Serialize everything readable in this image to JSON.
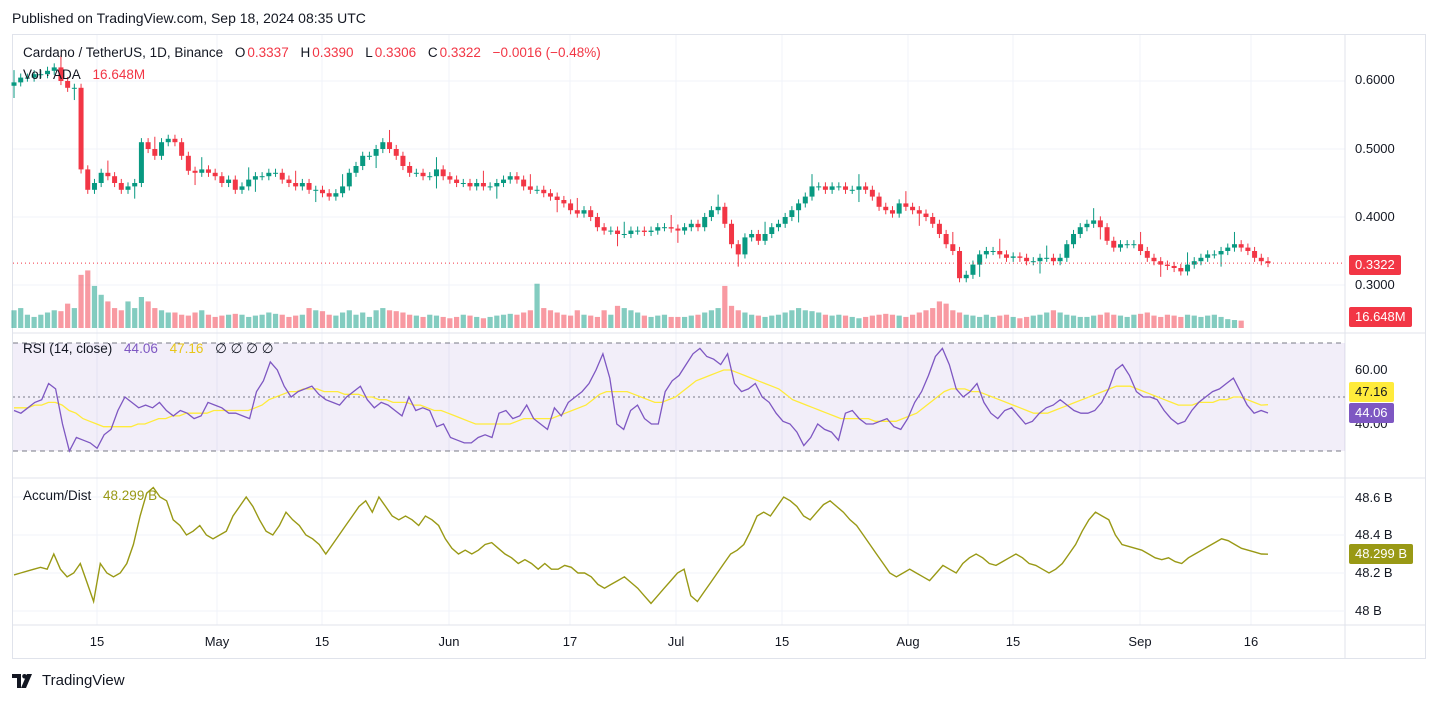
{
  "header": {
    "published": "Published on TradingView.com, Sep 18, 2024 08:35 UTC"
  },
  "footer": {
    "brand": "TradingView",
    "logo_icon": "tradingview-logo-icon"
  },
  "symbol": {
    "name": "Cardano / TetherUS, 1D, Binance",
    "o_label": "O",
    "o": "0.3337",
    "h_label": "H",
    "h": "0.3390",
    "l_label": "L",
    "l": "0.3306",
    "c_label": "C",
    "c": "0.3322",
    "change": "−0.0016 (−0.48%)"
  },
  "volume": {
    "label": "Vol · ADA",
    "value": "16.648M"
  },
  "rsi": {
    "label": "RSI (14, close)",
    "rsi_value": "44.06",
    "ma_value": "47.16",
    "extra": "∅ ∅ ∅ ∅"
  },
  "ad": {
    "label": "Accum/Dist",
    "value": "48.299 B"
  },
  "colors": {
    "up": "#089981",
    "down": "#f23645",
    "rsi_line": "#7e57c2",
    "rsi_ma": "#ffeb3b",
    "ad_line": "#999915"
  },
  "chart_data": [
    {
      "type": "candlestick",
      "pane": "price",
      "y_ticks": [
        "0.6000",
        "0.5000",
        "0.4000",
        "0.3000"
      ],
      "last_price": "0.3322",
      "x_ticks": [
        "15",
        "May",
        "15",
        "Jun",
        "17",
        "Jul",
        "15",
        "Aug",
        "15",
        "Sep",
        "16"
      ],
      "closes": [
        0.598,
        0.605,
        0.605,
        0.61,
        0.61,
        0.615,
        0.62,
        0.6,
        0.59,
        0.59,
        0.47,
        0.44,
        0.45,
        0.465,
        0.46,
        0.45,
        0.44,
        0.445,
        0.45,
        0.51,
        0.5,
        0.49,
        0.51,
        0.515,
        0.51,
        0.49,
        0.468,
        0.465,
        0.47,
        0.465,
        0.46,
        0.45,
        0.455,
        0.44,
        0.445,
        0.455,
        0.46,
        0.46,
        0.465,
        0.465,
        0.455,
        0.45,
        0.445,
        0.45,
        0.44,
        0.44,
        0.435,
        0.43,
        0.435,
        0.445,
        0.465,
        0.475,
        0.49,
        0.49,
        0.5,
        0.51,
        0.5,
        0.49,
        0.475,
        0.465,
        0.465,
        0.46,
        0.46,
        0.47,
        0.46,
        0.455,
        0.45,
        0.45,
        0.445,
        0.45,
        0.445,
        0.445,
        0.45,
        0.455,
        0.46,
        0.455,
        0.445,
        0.44,
        0.44,
        0.435,
        0.43,
        0.425,
        0.42,
        0.41,
        0.405,
        0.41,
        0.4,
        0.385,
        0.38,
        0.38,
        0.375,
        0.375,
        0.38,
        0.38,
        0.378,
        0.38,
        0.385,
        0.385,
        0.383,
        0.38,
        0.385,
        0.39,
        0.385,
        0.4,
        0.41,
        0.415,
        0.39,
        0.36,
        0.345,
        0.37,
        0.375,
        0.365,
        0.375,
        0.385,
        0.39,
        0.4,
        0.41,
        0.42,
        0.43,
        0.445,
        0.445,
        0.44,
        0.445,
        0.445,
        0.44,
        0.44,
        0.445,
        0.44,
        0.43,
        0.415,
        0.41,
        0.405,
        0.42,
        0.415,
        0.41,
        0.405,
        0.4,
        0.39,
        0.375,
        0.36,
        0.35,
        0.31,
        0.315,
        0.33,
        0.345,
        0.35,
        0.35,
        0.345,
        0.34,
        0.342,
        0.34,
        0.335,
        0.335,
        0.34,
        0.34,
        0.335,
        0.34,
        0.36,
        0.375,
        0.385,
        0.39,
        0.395,
        0.385,
        0.365,
        0.355,
        0.36,
        0.36,
        0.36,
        0.35,
        0.34,
        0.335,
        0.33,
        0.328,
        0.325,
        0.32,
        0.33,
        0.335,
        0.34,
        0.345,
        0.345,
        0.35,
        0.355,
        0.36,
        0.355,
        0.35,
        0.34,
        0.335,
        0.3322
      ]
    },
    {
      "type": "bar",
      "pane": "volume",
      "unit": "M ADA",
      "last_value": "16.648M",
      "values": [
        40,
        45,
        30,
        25,
        30,
        35,
        40,
        38,
        55,
        45,
        120,
        130,
        95,
        75,
        60,
        45,
        40,
        60,
        45,
        70,
        60,
        45,
        40,
        35,
        35,
        30,
        28,
        35,
        40,
        30,
        25,
        28,
        30,
        32,
        30,
        25,
        28,
        30,
        35,
        32,
        30,
        25,
        28,
        30,
        45,
        40,
        38,
        30,
        28,
        35,
        40,
        30,
        35,
        25,
        40,
        45,
        40,
        38,
        35,
        30,
        28,
        25,
        30,
        28,
        25,
        22,
        25,
        30,
        28,
        25,
        22,
        25,
        28,
        30,
        32,
        30,
        35,
        40,
        100,
        45,
        40,
        35,
        30,
        28,
        40,
        30,
        28,
        25,
        40,
        30,
        50,
        45,
        40,
        35,
        28,
        25,
        28,
        30,
        25,
        25,
        25,
        28,
        30,
        35,
        40,
        45,
        95,
        50,
        40,
        35,
        30,
        28,
        25,
        28,
        30,
        35,
        40,
        45,
        40,
        38,
        35,
        30,
        28,
        30,
        28,
        25,
        22,
        25,
        28,
        30,
        32,
        30,
        28,
        25,
        30,
        35,
        40,
        45,
        60,
        55,
        40,
        35,
        30,
        28,
        25,
        30,
        25,
        28,
        30,
        25,
        22,
        25,
        28,
        30,
        35,
        40,
        35,
        30,
        28,
        25,
        25,
        28,
        30,
        35,
        30,
        28,
        25,
        30,
        32,
        35,
        28,
        25,
        30,
        28,
        25,
        30,
        28,
        25,
        28,
        30,
        25,
        20,
        18,
        16.648
      ]
    },
    {
      "type": "line",
      "pane": "rsi",
      "y_ticks": [
        "60.00",
        "40.00"
      ],
      "bands": [
        70,
        50,
        30
      ],
      "series": [
        {
          "name": "RSI (14, close)",
          "last": "44.06",
          "values": [
            45,
            44,
            46,
            48,
            49,
            55,
            53,
            40,
            30,
            35,
            34,
            33,
            31,
            36,
            38,
            45,
            50,
            48,
            46,
            47,
            46,
            48,
            45,
            43,
            45,
            44,
            42,
            43,
            48,
            47,
            46,
            44,
            44,
            43,
            42,
            52,
            56,
            63,
            60,
            54,
            50,
            52,
            53,
            54,
            51,
            49,
            48,
            47,
            50,
            52,
            54,
            49,
            46,
            48,
            47,
            45,
            43,
            50,
            45,
            46,
            45,
            39,
            40,
            35,
            34,
            33,
            33,
            35,
            36,
            35,
            44,
            45,
            42,
            43,
            47,
            42,
            40,
            38,
            46,
            43,
            48,
            50,
            52,
            55,
            60,
            66,
            57,
            40,
            38,
            45,
            47,
            42,
            40,
            40,
            52,
            56,
            58,
            62,
            66,
            68,
            65,
            64,
            62,
            66,
            55,
            52,
            53,
            55,
            50,
            48,
            44,
            41,
            40,
            37,
            32,
            35,
            40,
            38,
            37,
            34,
            44,
            45,
            42,
            40,
            40,
            41,
            42,
            39,
            38,
            42,
            48,
            52,
            58,
            65,
            68,
            62,
            53,
            50,
            52,
            55,
            48,
            44,
            42,
            45,
            46,
            43,
            40,
            41,
            44,
            46,
            47,
            49,
            47,
            45,
            44,
            44,
            45,
            48,
            53,
            60,
            62,
            58,
            52,
            50,
            50,
            49,
            45,
            42,
            40,
            41,
            45,
            48,
            50,
            52,
            53,
            55,
            57,
            52,
            47,
            44,
            45,
            44.06
          ]
        },
        {
          "name": "RSI-based MA",
          "last": "47.16",
          "values": [
            46,
            46,
            46,
            47,
            47,
            48,
            48,
            47,
            45,
            44,
            42,
            41,
            40,
            39,
            39,
            39,
            39,
            39,
            40,
            40,
            41,
            42,
            42,
            43,
            43,
            44,
            44,
            44,
            44,
            45,
            45,
            45,
            45,
            45,
            45,
            46,
            47,
            49,
            50,
            51,
            52,
            52,
            53,
            53,
            53,
            52,
            52,
            52,
            51,
            51,
            51,
            50,
            50,
            49,
            49,
            48,
            48,
            48,
            47,
            47,
            46,
            45,
            45,
            44,
            43,
            42,
            41,
            40,
            40,
            40,
            40,
            40,
            40,
            41,
            42,
            42,
            42,
            42,
            42,
            43,
            44,
            45,
            46,
            47,
            49,
            51,
            52,
            52,
            52,
            52,
            51,
            50,
            49,
            48,
            48,
            49,
            50,
            52,
            54,
            56,
            57,
            58,
            59,
            60,
            60,
            59,
            58,
            57,
            56,
            55,
            54,
            53,
            51,
            49,
            48,
            47,
            46,
            45,
            44,
            43,
            42,
            42,
            42,
            42,
            42,
            41,
            41,
            41,
            41,
            42,
            43,
            44,
            46,
            48,
            50,
            52,
            53,
            53,
            53,
            52,
            52,
            51,
            50,
            49,
            48,
            47,
            46,
            45,
            44,
            44,
            44,
            45,
            46,
            47,
            48,
            49,
            50,
            51,
            52,
            53,
            54,
            54,
            54,
            53,
            52,
            51,
            50,
            49,
            48,
            47,
            47,
            47,
            48,
            48,
            48,
            49,
            49,
            50,
            50,
            49,
            48,
            47,
            47.16
          ]
        }
      ]
    },
    {
      "type": "line",
      "pane": "accum_dist",
      "unit": "B",
      "y_ticks": [
        "48.6 B",
        "48.4 B",
        "48.2 B",
        "48 B"
      ],
      "series": [
        {
          "name": "Accum/Dist",
          "last": "48.299 B",
          "values": [
            48.19,
            48.2,
            48.21,
            48.22,
            48.23,
            48.22,
            48.3,
            48.22,
            48.18,
            48.2,
            48.25,
            48.15,
            48.05,
            48.25,
            48.2,
            48.18,
            48.2,
            48.25,
            48.35,
            48.5,
            48.62,
            48.65,
            48.6,
            48.58,
            48.48,
            48.45,
            48.4,
            48.42,
            48.45,
            48.4,
            48.38,
            48.4,
            48.42,
            48.5,
            48.55,
            48.6,
            48.55,
            48.48,
            48.42,
            48.4,
            48.45,
            48.52,
            48.48,
            48.45,
            48.4,
            48.38,
            48.35,
            48.3,
            48.35,
            48.4,
            48.45,
            48.5,
            48.55,
            48.58,
            48.52,
            48.6,
            48.55,
            48.5,
            48.48,
            48.5,
            48.48,
            48.45,
            48.5,
            48.48,
            48.45,
            48.38,
            48.33,
            48.3,
            48.32,
            48.3,
            48.32,
            48.35,
            48.36,
            48.33,
            48.3,
            48.28,
            48.25,
            48.27,
            48.25,
            48.22,
            48.25,
            48.22,
            48.22,
            48.24,
            48.23,
            48.2,
            48.2,
            48.18,
            48.14,
            48.12,
            48.14,
            48.16,
            48.18,
            48.15,
            48.12,
            48.08,
            48.04,
            48.08,
            48.12,
            48.16,
            48.2,
            48.22,
            48.08,
            48.05,
            48.1,
            48.15,
            48.2,
            48.25,
            48.3,
            48.32,
            48.35,
            48.42,
            48.5,
            48.52,
            48.5,
            48.55,
            48.6,
            48.58,
            48.55,
            48.5,
            48.48,
            48.52,
            48.56,
            48.58,
            48.55,
            48.52,
            48.48,
            48.45,
            48.4,
            48.35,
            48.3,
            48.25,
            48.2,
            48.18,
            48.2,
            48.22,
            48.2,
            48.18,
            48.16,
            48.2,
            48.24,
            48.22,
            48.2,
            48.25,
            48.28,
            48.3,
            48.28,
            48.25,
            48.24,
            48.26,
            48.28,
            48.3,
            48.28,
            48.25,
            48.24,
            48.22,
            48.2,
            48.22,
            48.25,
            48.3,
            48.35,
            48.42,
            48.48,
            48.52,
            48.5,
            48.48,
            48.4,
            48.35,
            48.34,
            48.33,
            48.32,
            48.3,
            48.28,
            48.27,
            48.28,
            48.26,
            48.25,
            48.28,
            48.3,
            48.32,
            48.34,
            48.36,
            48.38,
            48.37,
            48.35,
            48.33,
            48.32,
            48.31,
            48.3,
            48.299
          ]
        }
      ]
    }
  ]
}
